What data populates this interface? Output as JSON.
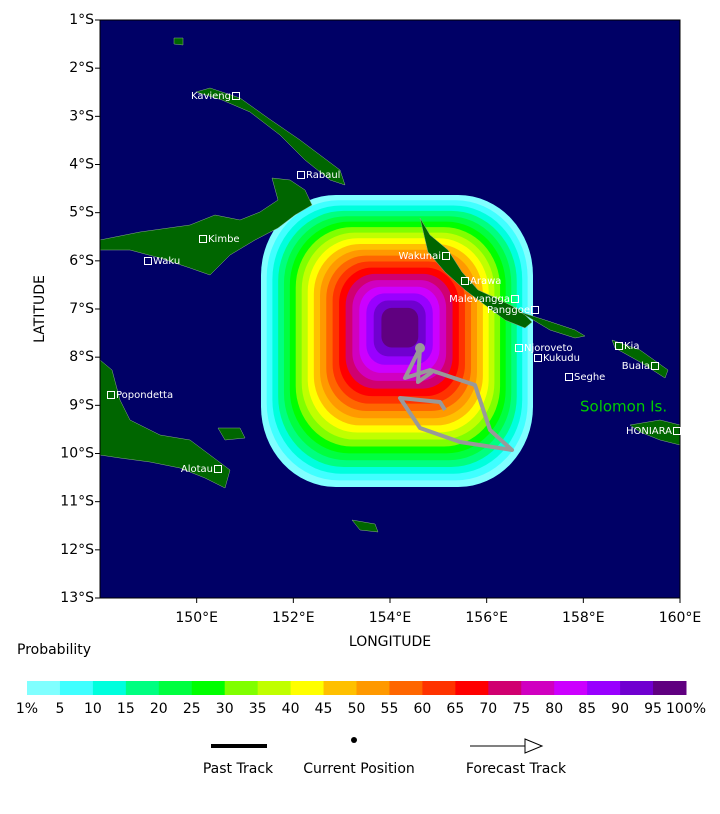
{
  "map": {
    "x_axis_label": "LONGITUDE",
    "y_axis_label": "LATITUDE",
    "xticks": [
      "150°E",
      "152°E",
      "154°E",
      "156°E",
      "158°E",
      "160°E"
    ],
    "yticks": [
      "1°S",
      "2°S",
      "3°S",
      "4°S",
      "5°S",
      "6°S",
      "7°S",
      "8°S",
      "9°S",
      "10°S",
      "11°S",
      "12°S",
      "13°S"
    ],
    "places": [
      "Kavieng",
      "Rabaul",
      "Kimbe",
      "Waku",
      "Wakunai",
      "Arawa",
      "Malevangga",
      "Panggoe",
      "Njoroveto",
      "Kukudu",
      "Seghe",
      "Kia",
      "Buala",
      "HONIARA",
      "Popondetta",
      "Alotau"
    ],
    "region_label": "Solomon Is.",
    "colorbar": {
      "title": "Probability",
      "labels": [
        "1%",
        "5",
        "10",
        "15",
        "20",
        "25",
        "30",
        "35",
        "40",
        "45",
        "50",
        "55",
        "60",
        "65",
        "70",
        "75",
        "80",
        "85",
        "90",
        "95",
        "100%"
      ],
      "colors": [
        "#80ffff",
        "#40ffff",
        "#00ffdd",
        "#00ff80",
        "#00ff40",
        "#00ff00",
        "#80ff00",
        "#c0ff00",
        "#ffff00",
        "#ffc000",
        "#ff9900",
        "#ff6600",
        "#ff3300",
        "#ff0000",
        "#d00070",
        "#d000c0",
        "#cc00ff",
        "#9900ff",
        "#7000d0",
        "#600080"
      ]
    },
    "legend": [
      "Past Track",
      "Current Position",
      "Forecast Track"
    ]
  }
}
